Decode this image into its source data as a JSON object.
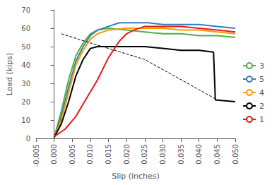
{
  "chart_data": {
    "type": "line",
    "xlabel": "Slip (inches)",
    "ylabel": "Load (kips)",
    "xlim": [
      -0.005,
      0.05
    ],
    "ylim": [
      0,
      70
    ],
    "xticks": [
      -0.005,
      {
        "value": 0.0,
        "label": "0.000"
      },
      0.005,
      {
        "value": 0.01,
        "label": "0.010"
      },
      0.015,
      {
        "value": 0.02,
        "label": "0.020"
      },
      0.025,
      {
        "value": 0.03,
        "label": "0.030"
      },
      0.035,
      {
        "value": 0.04,
        "label": "0.040"
      },
      0.045,
      {
        "value": 0.05,
        "label": "0.050"
      }
    ],
    "yticks": [
      0,
      10,
      20,
      30,
      40,
      50,
      60,
      70
    ],
    "grid": false,
    "legend": "right",
    "series": [
      {
        "name": "3",
        "color": "#4daf4a",
        "x": [
          0.0,
          0.002,
          0.004,
          0.006,
          0.008,
          0.01,
          0.012,
          0.015,
          0.02,
          0.025,
          0.03,
          0.035,
          0.04,
          0.045,
          0.05
        ],
        "values": [
          0.5,
          15,
          32,
          45,
          52,
          57,
          59,
          60,
          59,
          58,
          57,
          57,
          56,
          56,
          55
        ]
      },
      {
        "name": "5",
        "color": "#377eb8",
        "x": [
          0.0,
          0.002,
          0.004,
          0.006,
          0.008,
          0.01,
          0.012,
          0.015,
          0.018,
          0.022,
          0.026,
          0.03,
          0.035,
          0.04,
          0.045,
          0.05
        ],
        "values": [
          0.5,
          12,
          28,
          42,
          50,
          56,
          59,
          61,
          63,
          63,
          63,
          62,
          62,
          62,
          61,
          60
        ]
      },
      {
        "name": "4",
        "color": "#ff9900",
        "x": [
          0.0,
          0.002,
          0.004,
          0.006,
          0.008,
          0.01,
          0.012,
          0.015,
          0.02,
          0.025,
          0.03,
          0.035,
          0.04,
          0.045,
          0.05
        ],
        "values": [
          0.5,
          10,
          25,
          40,
          48,
          54,
          57,
          59,
          60,
          60,
          60,
          59,
          59,
          58,
          57
        ]
      },
      {
        "name": "2",
        "color": "#000000",
        "x": [
          0.0,
          0.002,
          0.004,
          0.006,
          0.008,
          0.01,
          0.012,
          0.015,
          0.02,
          0.025,
          0.03,
          0.035,
          0.04,
          0.044,
          0.0445,
          0.05
        ],
        "values": [
          0.5,
          8,
          20,
          34,
          43,
          49,
          50,
          50,
          50,
          50,
          49,
          48,
          48,
          47,
          21,
          20
        ]
      },
      {
        "name": "1",
        "color": "#e41a1c",
        "x": [
          0.0,
          0.003,
          0.006,
          0.009,
          0.012,
          0.015,
          0.018,
          0.02,
          0.022,
          0.025,
          0.03,
          0.035,
          0.04,
          0.045,
          0.05
        ],
        "values": [
          1,
          5,
          12,
          22,
          32,
          44,
          53,
          57,
          59,
          61,
          61,
          61,
          60,
          59,
          58
        ]
      },
      {
        "color": "#000000",
        "line_style": "dashed",
        "x": [
          0.002,
          0.01,
          0.025,
          0.045
        ],
        "values": [
          57,
          52,
          43,
          21
        ]
      }
    ]
  }
}
